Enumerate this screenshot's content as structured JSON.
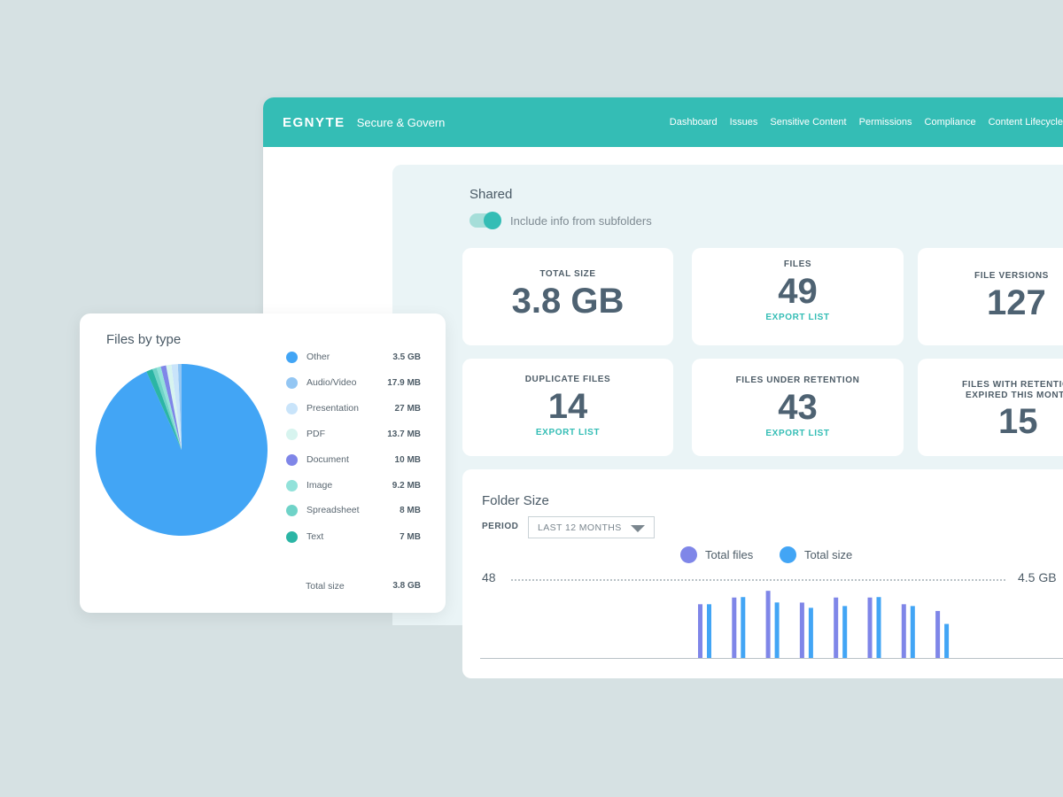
{
  "app": {
    "logo": "EGNYTE",
    "product": "Secure & Govern",
    "nav": [
      "Dashboard",
      "Issues",
      "Sensitive Content",
      "Permissions",
      "Compliance",
      "Content Lifecycle"
    ]
  },
  "shared": {
    "title": "Shared",
    "toggle_label": "Include info from subfolders"
  },
  "cards": {
    "total_size": {
      "label": "TOTAL SIZE",
      "value": "3.8 GB"
    },
    "files": {
      "label": "FILES",
      "value": "49",
      "export": "EXPORT LIST"
    },
    "file_versions": {
      "label": "FILE VERSIONS",
      "value": "127"
    },
    "duplicate_files": {
      "label": "DUPLICATE FILES",
      "value": "14",
      "export": "EXPORT LIST"
    },
    "files_under_retention": {
      "label": "FILES UNDER RETENTION",
      "value": "43",
      "export": "EXPORT LIST"
    },
    "files_retention_expired": {
      "label_line1": "FILES WITH RETENTION",
      "label_line2": "EXPIRED THIS MONTH",
      "value": "15"
    }
  },
  "folder_size": {
    "title": "Folder Size",
    "period_label": "PERIOD",
    "period_value": "LAST 12 MONTHS",
    "legend": [
      {
        "name": "Total files",
        "color": "#7f86e8"
      },
      {
        "name": "Total size",
        "color": "#42a5f5"
      }
    ],
    "axis_left_max": "48",
    "axis_right_max": "4.5 GB"
  },
  "files_by_type": {
    "title": "Files by type",
    "items": [
      {
        "name": "Other",
        "size": "3.5 GB",
        "color": "#42a5f5"
      },
      {
        "name": "Audio/Video",
        "size": "17.9 MB",
        "color": "#93c6f3"
      },
      {
        "name": "Presentation",
        "size": "27 MB",
        "color": "#c9e4fa"
      },
      {
        "name": "PDF",
        "size": "13.7 MB",
        "color": "#d7f4ef"
      },
      {
        "name": "Document",
        "size": "10 MB",
        "color": "#7f86e8"
      },
      {
        "name": "Image",
        "size": "9.2 MB",
        "color": "#92e2da"
      },
      {
        "name": "Spreadsheet",
        "size": "8 MB",
        "color": "#6fd3c8"
      },
      {
        "name": "Text",
        "size": "7 MB",
        "color": "#2bb5a5"
      }
    ],
    "total_label": "Total size",
    "total_value": "3.8 GB"
  },
  "chart_data": [
    {
      "type": "pie",
      "title": "Files by type",
      "categories": [
        "Other",
        "Audio/Video",
        "Presentation",
        "PDF",
        "Document",
        "Image",
        "Spreadsheet",
        "Text"
      ],
      "values": [
        0.93,
        0.007,
        0.012,
        0.01,
        0.01,
        0.008,
        0.008,
        0.012
      ],
      "legend": "right"
    },
    {
      "type": "bar",
      "title": "Folder Size",
      "series": [
        {
          "name": "Total files",
          "values": [
            32,
            36,
            40,
            33,
            36,
            36,
            32,
            28
          ]
        },
        {
          "name": "Total size",
          "values": [
            3.0,
            3.4,
            3.1,
            2.8,
            2.9,
            3.4,
            2.9,
            1.9
          ]
        }
      ],
      "ylim_left": [
        0,
        48
      ],
      "ylim_right": [
        0,
        4.5
      ],
      "legend": "top"
    }
  ]
}
